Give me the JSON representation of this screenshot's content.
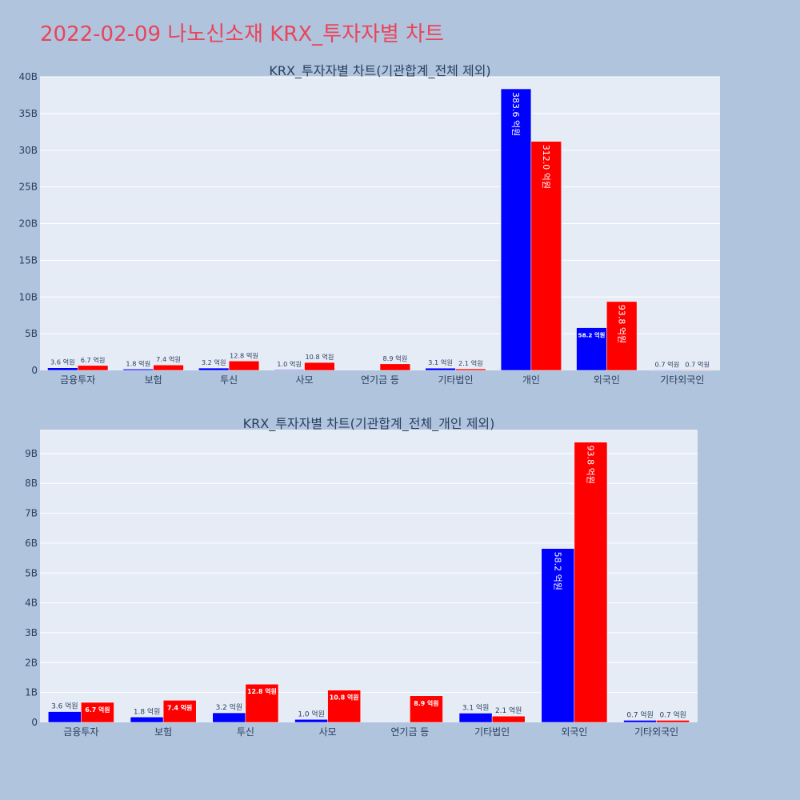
{
  "title": "2022-02-09 나노신소재 KRX_투자자별 차트",
  "colors": {
    "buy": "#0000ff",
    "sell": "#ff0000",
    "plot_bg": "#e5ecf6",
    "page_bg": "#b0c4de",
    "title": "#e8455a"
  },
  "chart_data": [
    {
      "type": "bar",
      "title": "KRX_투자자별 차트(기관합계_전체 제외)",
      "categories": [
        "금융투자",
        "보험",
        "투신",
        "사모",
        "연기금 등",
        "기타법인",
        "개인",
        "외국인",
        "기타외국인"
      ],
      "series": [
        {
          "values": [
            360000000,
            180000000,
            320000000,
            100000000,
            null,
            310000000,
            38360000000,
            5820000000,
            70000000
          ],
          "labels": [
            "3.6 억원",
            "1.8 억원",
            "3.2 억원",
            "1.0 억원",
            "",
            "3.1 억원",
            "383.6 억원",
            "58.2 억원",
            "0.7 억원"
          ]
        },
        {
          "values": [
            670000000,
            740000000,
            1280000000,
            1080000000,
            890000000,
            210000000,
            31200000000,
            9380000000,
            70000000
          ],
          "labels": [
            "6.7 억원",
            "7.4 억원",
            "12.8 억원",
            "10.8 억원",
            "8.9 억원",
            "2.1 억원",
            "312.0 억원",
            "93.8 억원",
            "0.7 억원"
          ]
        }
      ],
      "ylim": [
        0,
        40000000000
      ],
      "yticks": [
        0,
        5000000000,
        10000000000,
        15000000000,
        20000000000,
        25000000000,
        30000000000,
        35000000000,
        40000000000
      ],
      "ytick_labels": [
        "0",
        "5B",
        "10B",
        "15B",
        "20B",
        "25B",
        "30B",
        "35B",
        "40B"
      ],
      "grid": true
    },
    {
      "type": "bar",
      "title": "KRX_투자자별 차트(기관합계_전체_개인 제외)",
      "categories": [
        "금융투자",
        "보험",
        "투신",
        "사모",
        "연기금 등",
        "기타법인",
        "외국인",
        "기타외국인"
      ],
      "series": [
        {
          "values": [
            360000000,
            180000000,
            320000000,
            100000000,
            null,
            310000000,
            5820000000,
            70000000
          ],
          "labels": [
            "3.6 억원",
            "1.8 억원",
            "3.2 억원",
            "1.0 억원",
            "",
            "3.1 억원",
            "58.2 억원",
            "0.7 억원"
          ]
        },
        {
          "values": [
            670000000,
            740000000,
            1280000000,
            1080000000,
            890000000,
            210000000,
            9380000000,
            70000000
          ],
          "labels": [
            "6.7 억원",
            "7.4 억원",
            "12.8 억원",
            "10.8 억원",
            "8.9 억원",
            "2.1 억원",
            "93.8 억원",
            "0.7 억원"
          ]
        }
      ],
      "ylim": [
        0,
        9800000000
      ],
      "yticks": [
        0,
        1000000000,
        2000000000,
        3000000000,
        4000000000,
        5000000000,
        6000000000,
        7000000000,
        8000000000,
        9000000000
      ],
      "ytick_labels": [
        "0",
        "1B",
        "2B",
        "3B",
        "4B",
        "5B",
        "6B",
        "7B",
        "8B",
        "9B"
      ],
      "grid": true
    }
  ]
}
